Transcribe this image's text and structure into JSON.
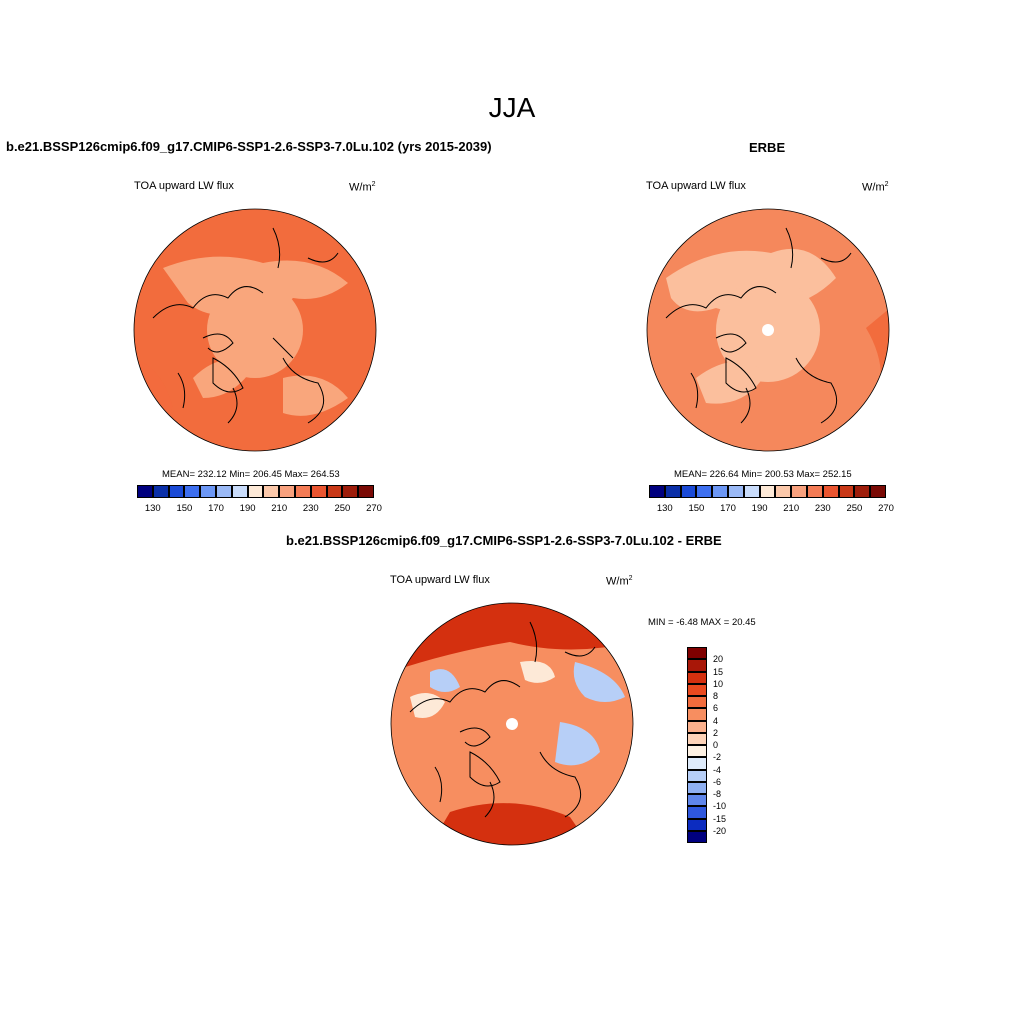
{
  "figure": {
    "season": "JJA",
    "field_label": "TOA upward LW flux",
    "units_base": "W/m",
    "units_exp": "2"
  },
  "panels": {
    "model": {
      "title": "b.e21.BSSP126cmip6.f09_g17.CMIP6-SSP1-2.6-SSP3-7.0Lu.102 (yrs 2015-2039)",
      "stats": "MEAN= 232.12  Min= 206.45  Max= 264.53"
    },
    "obs": {
      "title": "ERBE",
      "stats": "MEAN= 226.64  Min= 200.53  Max= 252.15"
    },
    "diff": {
      "title": "b.e21.BSSP126cmip6.f09_g17.CMIP6-SSP1-2.6-SSP3-7.0Lu.102 - ERBE",
      "minmax": "MIN =  -6.48 MAX =  20.45"
    }
  },
  "colorbar_abs": {
    "tick_labels": [
      "130",
      "150",
      "170",
      "190",
      "210",
      "230",
      "250",
      "270"
    ],
    "colors": [
      "#00007f",
      "#0a2fa8",
      "#1a4ad6",
      "#3d6ff0",
      "#6c97f5",
      "#9ab9f6",
      "#c9dcfb",
      "#fde9d7",
      "#fbc8aa",
      "#f8a17e",
      "#f47b55",
      "#ea5530",
      "#c93817",
      "#9e1d0b",
      "#7a0a05"
    ]
  },
  "colorbar_diff": {
    "tick_labels": [
      "20",
      "15",
      "10",
      "8",
      "6",
      "4",
      "2",
      "0",
      "-2",
      "-4",
      "-6",
      "-8",
      "-10",
      "-15",
      "-20"
    ],
    "colors": [
      "#7f0000",
      "#a81708",
      "#d4300f",
      "#ea4a1f",
      "#f26c3d",
      "#f78e60",
      "#fab08c",
      "#fdd3b8",
      "#fdf1e3",
      "#deebfb",
      "#b7cff7",
      "#8fb0f2",
      "#5f86eb",
      "#2f58de",
      "#0c2cc0",
      "#00007f"
    ]
  },
  "map_colors": {
    "ocean_model": "#f26c3d",
    "land_model": "#f9a67c",
    "ocean_obs": "#f5885c",
    "land_obs": "#fbbf9d",
    "diff_base": "#f78e60",
    "diff_hot": "#d4300f",
    "diff_cool": "#b7cff7",
    "coast": "#000000"
  }
}
